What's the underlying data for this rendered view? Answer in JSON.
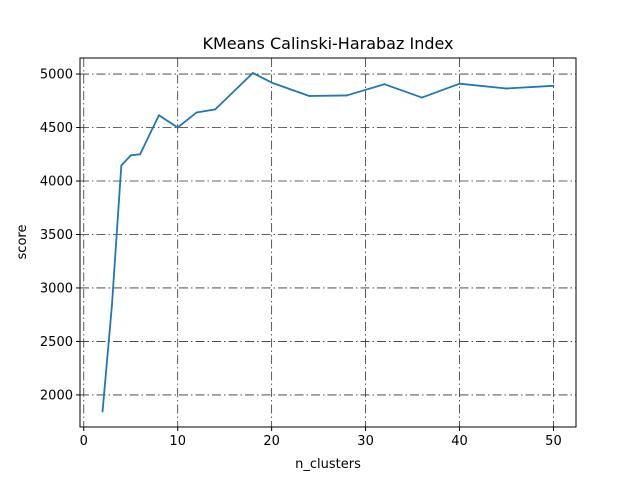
{
  "chart_data": {
    "type": "line",
    "title": "KMeans Calinski-Harabaz Index",
    "xlabel": "n_clusters",
    "ylabel": "score",
    "xlim": [
      -0.4,
      52.4
    ],
    "ylim": [
      1700,
      5150
    ],
    "xticks": [
      0,
      10,
      20,
      30,
      40,
      50
    ],
    "yticks": [
      2000,
      2500,
      3000,
      3500,
      4000,
      4500,
      5000
    ],
    "grid": true,
    "line_color": "#1f77b4",
    "series": [
      {
        "x": [
          2,
          3,
          4,
          5,
          6,
          8,
          10,
          12,
          14,
          18,
          20,
          24,
          28,
          32,
          36,
          40,
          45,
          50
        ],
        "values": [
          1845,
          2840,
          4145,
          4240,
          4250,
          4615,
          4500,
          4640,
          4670,
          5010,
          4920,
          4795,
          4800,
          4905,
          4780,
          4910,
          4865,
          4890
        ]
      }
    ]
  }
}
